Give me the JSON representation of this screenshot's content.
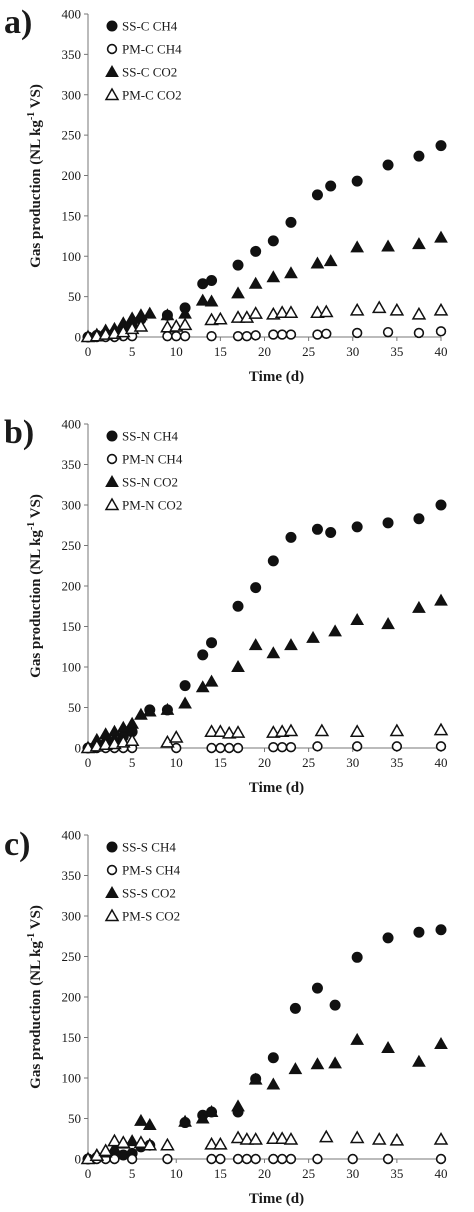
{
  "chart_data": [
    {
      "type": "scatter",
      "panel_label": "a)",
      "xlabel": "Time (d)",
      "ylabel_main": "Gas production  (NL kg",
      "ylabel_sup": "-1",
      "ylabel_tail": " VS)",
      "xlim": [
        0,
        40
      ],
      "ylim": [
        0,
        400
      ],
      "x_ticks": [
        0,
        5,
        10,
        15,
        20,
        25,
        30,
        35,
        40
      ],
      "y_ticks": [
        0,
        50,
        100,
        150,
        200,
        250,
        300,
        350,
        400
      ],
      "grid": false,
      "legend_position": "top-left",
      "series": [
        {
          "name": "SS-C CH4",
          "marker": "circle-filled",
          "x": [
            0,
            1,
            2,
            3,
            4,
            5,
            6,
            9,
            11,
            13,
            14,
            17,
            19,
            21,
            23,
            26,
            27.5,
            30.5,
            34,
            37.5,
            40
          ],
          "y": [
            0,
            2,
            4,
            5,
            10,
            15,
            22,
            27,
            36,
            66,
            70,
            89,
            106,
            119,
            142,
            176,
            187,
            193,
            213,
            224,
            237
          ]
        },
        {
          "name": "PM-C CH4",
          "marker": "circle-open",
          "x": [
            0,
            1,
            2,
            3,
            4,
            5,
            9,
            10,
            11,
            14,
            17,
            18,
            19,
            21,
            22,
            23,
            26,
            27,
            30.5,
            34,
            37.5,
            40
          ],
          "y": [
            0,
            0,
            0,
            0,
            1,
            1,
            1,
            1,
            1,
            1,
            1,
            1,
            2,
            3,
            3,
            3,
            3,
            4,
            5,
            6,
            5,
            7
          ]
        },
        {
          "name": "SS-C CO2",
          "marker": "triangle-filled",
          "x": [
            0,
            1,
            2,
            3,
            4,
            5,
            6,
            7,
            9,
            11,
            13,
            14,
            17,
            19,
            21,
            23,
            26,
            27.5,
            30.5,
            34,
            37.5,
            40
          ],
          "y": [
            0,
            3,
            8,
            10,
            17,
            23,
            27,
            29,
            27,
            29,
            45,
            44,
            54,
            66,
            74,
            79,
            91,
            94,
            111,
            112,
            115,
            123
          ]
        },
        {
          "name": "PM-C CO2",
          "marker": "triangle-open",
          "x": [
            0,
            1,
            2,
            3,
            4,
            5,
            6,
            9,
            10,
            11,
            14,
            15,
            17,
            18,
            19,
            21,
            22,
            23,
            26,
            27,
            30.5,
            33,
            35,
            37.5,
            40
          ],
          "y": [
            0,
            1,
            3,
            4,
            6,
            10,
            13,
            12,
            13,
            15,
            21,
            22,
            24,
            24,
            29,
            28,
            30,
            30,
            30,
            31,
            33,
            36,
            33,
            28,
            33
          ]
        }
      ]
    },
    {
      "type": "scatter",
      "panel_label": "b)",
      "xlabel": "Time (d)",
      "ylabel_main": "Gas production  (NL kg",
      "ylabel_sup": "-1",
      "ylabel_tail": " VS)",
      "xlim": [
        0,
        40
      ],
      "ylim": [
        0,
        400
      ],
      "x_ticks": [
        0,
        5,
        10,
        15,
        20,
        25,
        30,
        35,
        40
      ],
      "y_ticks": [
        0,
        50,
        100,
        150,
        200,
        250,
        300,
        350,
        400
      ],
      "grid": false,
      "legend_position": "top-left",
      "series": [
        {
          "name": "SS-N CH4",
          "marker": "circle-filled",
          "x": [
            0,
            1,
            2,
            3,
            4,
            5,
            7,
            9,
            11,
            13,
            14,
            17,
            19,
            21,
            23,
            26,
            27.5,
            30.5,
            34,
            37.5,
            40
          ],
          "y": [
            0,
            3,
            6,
            8,
            14,
            20,
            47,
            47,
            77,
            115,
            130,
            175,
            198,
            231,
            260,
            270,
            266,
            273,
            278,
            283,
            300
          ]
        },
        {
          "name": "PM-N CH4",
          "marker": "circle-open",
          "x": [
            0,
            1,
            2,
            3,
            4,
            5,
            10,
            14,
            15,
            16,
            17,
            21,
            22,
            23,
            26,
            30.5,
            35,
            40
          ],
          "y": [
            0,
            0,
            0,
            0,
            0,
            0,
            0,
            0,
            0,
            0,
            0,
            1,
            1,
            1,
            2,
            2,
            2,
            2
          ]
        },
        {
          "name": "SS-N CO2",
          "marker": "triangle-filled",
          "x": [
            0,
            1,
            2,
            3,
            4,
            5,
            6,
            7,
            9,
            11,
            13,
            14,
            17,
            19,
            21,
            23,
            25.5,
            28,
            30.5,
            34,
            37.5,
            40
          ],
          "y": [
            0,
            10,
            17,
            20,
            25,
            30,
            41,
            45,
            47,
            55,
            75,
            82,
            100,
            127,
            117,
            127,
            136,
            144,
            158,
            153,
            173,
            182
          ]
        },
        {
          "name": "PM-N CO2",
          "marker": "triangle-open",
          "x": [
            0,
            1,
            2,
            3,
            4,
            5,
            9,
            10,
            14,
            15,
            16,
            17,
            21,
            22,
            23,
            26.5,
            30.5,
            35,
            40
          ],
          "y": [
            0,
            2,
            4,
            5,
            7,
            9,
            7,
            13,
            20,
            20,
            18,
            19,
            19,
            20,
            21,
            21,
            20,
            21,
            22
          ]
        }
      ]
    },
    {
      "type": "scatter",
      "panel_label": "c)",
      "xlabel": "Time (d)",
      "ylabel_main": "Gas production  (NL kg",
      "ylabel_sup": "-1",
      "ylabel_tail": " VS)",
      "xlim": [
        0,
        40
      ],
      "ylim": [
        0,
        400
      ],
      "x_ticks": [
        0,
        5,
        10,
        15,
        20,
        25,
        30,
        35,
        40
      ],
      "y_ticks": [
        0,
        50,
        100,
        150,
        200,
        250,
        300,
        350,
        400
      ],
      "grid": false,
      "legend_position": "top-left",
      "series": [
        {
          "name": "SS-S CH4",
          "marker": "circle-filled",
          "x": [
            0,
            1,
            2,
            3,
            4,
            5,
            6,
            7,
            11,
            13,
            14,
            17,
            19,
            21,
            23.5,
            26,
            28,
            30.5,
            34,
            37.5,
            40
          ],
          "y": [
            0,
            2,
            3,
            4,
            5,
            7,
            15,
            17,
            45,
            54,
            58,
            58,
            99,
            125,
            186,
            211,
            190,
            249,
            273,
            280,
            283
          ]
        },
        {
          "name": "PM-S CH4",
          "marker": "circle-open",
          "x": [
            0,
            1,
            2,
            3,
            5,
            9,
            14,
            15,
            17,
            18,
            19,
            21,
            22,
            23,
            26,
            30,
            34,
            40
          ],
          "y": [
            0,
            0,
            0,
            0,
            0,
            0,
            0,
            0,
            0,
            0,
            0,
            0,
            0,
            0,
            0,
            0,
            0,
            0
          ]
        },
        {
          "name": "SS-S CO2",
          "marker": "triangle-filled",
          "x": [
            0,
            1,
            2,
            3,
            4,
            5,
            6,
            7,
            11,
            13,
            14,
            17,
            19,
            21,
            23.5,
            26,
            28,
            30.5,
            34,
            37.5,
            40
          ],
          "y": [
            0,
            5,
            8,
            13,
            19,
            22,
            47,
            42,
            46,
            50,
            58,
            65,
            98,
            92,
            111,
            117,
            118,
            147,
            137,
            120,
            142
          ]
        },
        {
          "name": "PM-S CO2",
          "marker": "triangle-open",
          "x": [
            0,
            1,
            2,
            3,
            4,
            6,
            7,
            9,
            14,
            15,
            17,
            18,
            19,
            21,
            22,
            23,
            27,
            30.5,
            33,
            35,
            40
          ],
          "y": [
            0,
            4,
            10,
            22,
            20,
            20,
            17,
            17,
            18,
            18,
            26,
            24,
            24,
            25,
            25,
            24,
            27,
            26,
            24,
            23,
            24
          ]
        }
      ]
    }
  ]
}
